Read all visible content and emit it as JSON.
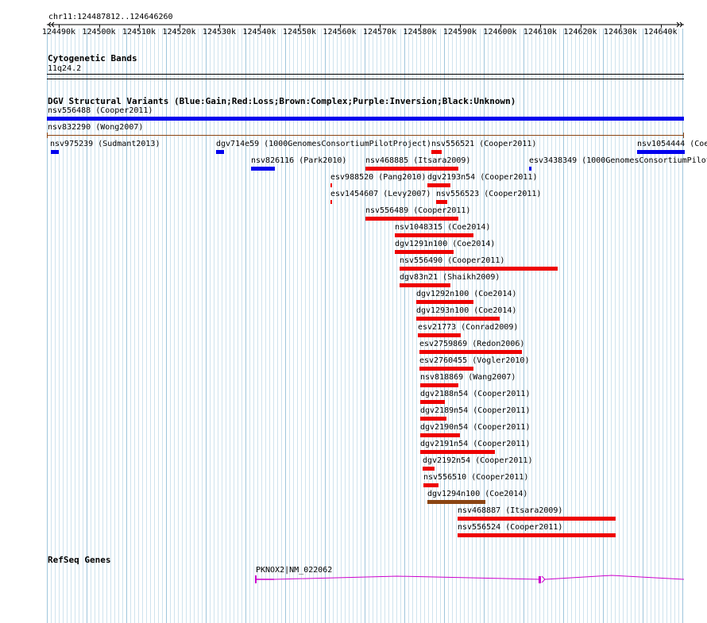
{
  "ruler": {
    "locus": "chr11:124487812..124646260",
    "tick_labels": [
      "124490k",
      "124500k",
      "124510k",
      "124520k",
      "124530k",
      "124540k",
      "124550k",
      "124560k",
      "124570k",
      "124580k",
      "124590k",
      "124600k",
      "124610k",
      "124620k",
      "124630k",
      "124640k"
    ]
  },
  "cytoband_track": {
    "title": "Cytogenetic Bands",
    "band": "11q24.2"
  },
  "dgv_track": {
    "title": "DGV Structural Variants (Blue:Gain;Red:Loss;Brown:Complex;Purple:Inversion;Black:Unknown)",
    "colors": {
      "gain": "#0000ee",
      "loss": "#ee0000",
      "complex": "#8b4513",
      "unknown": "#000000"
    },
    "features": [
      {
        "label": "nsv556488 (Cooper2011)",
        "type": "gain"
      },
      {
        "label": "nsv832290 (Wong2007)",
        "type": "line"
      },
      {
        "label": "nsv975239 (Sudmant2013)",
        "type": "gain"
      },
      {
        "label": "dgv714e59 (1000GenomesConsortiumPilotProject)",
        "type": "gain"
      },
      {
        "label": "nsv556521 (Cooper2011)",
        "type": "loss"
      },
      {
        "label": "nsv1054444 (Coe",
        "type": "gain"
      },
      {
        "label": "nsv826116 (Park2010)",
        "type": "gain"
      },
      {
        "label": "nsv468885 (Itsara2009)",
        "type": "loss"
      },
      {
        "label": "esv3438349 (1000GenomesConsortiumPilot",
        "type": "gain"
      },
      {
        "label": "esv988520 (Pang2010)",
        "type": "loss"
      },
      {
        "label": "dgv2193n54 (Cooper2011)",
        "type": "loss"
      },
      {
        "label": "esv1454607 (Levy2007)",
        "type": "loss"
      },
      {
        "label": "nsv556523 (Cooper2011)",
        "type": "loss"
      },
      {
        "label": "nsv556489 (Cooper2011)",
        "type": "loss"
      },
      {
        "label": "nsv1048315 (Coe2014)",
        "type": "loss"
      },
      {
        "label": "dgv1291n100 (Coe2014)",
        "type": "loss"
      },
      {
        "label": "nsv556490 (Cooper2011)",
        "type": "loss"
      },
      {
        "label": "dgv83n21 (Shaikh2009)",
        "type": "loss"
      },
      {
        "label": "dgv1292n100 (Coe2014)",
        "type": "loss"
      },
      {
        "label": "dgv1293n100 (Coe2014)",
        "type": "loss"
      },
      {
        "label": "esv21773 (Conrad2009)",
        "type": "loss"
      },
      {
        "label": "esv2759869 (Redon2006)",
        "type": "loss"
      },
      {
        "label": "esv2760455 (Vogler2010)",
        "type": "loss"
      },
      {
        "label": "nsv818869 (Wang2007)",
        "type": "loss"
      },
      {
        "label": "dgv2188n54 (Cooper2011)",
        "type": "loss"
      },
      {
        "label": "dgv2189n54 (Cooper2011)",
        "type": "loss"
      },
      {
        "label": "dgv2190n54 (Cooper2011)",
        "type": "loss"
      },
      {
        "label": "dgv2191n54 (Cooper2011)",
        "type": "loss"
      },
      {
        "label": "dgv2192n54 (Cooper2011)",
        "type": "loss"
      },
      {
        "label": "nsv556510 (Cooper2011)",
        "type": "loss"
      },
      {
        "label": "dgv1294n100 (Coe2014)",
        "type": "complex"
      },
      {
        "label": "nsv468887 (Itsara2009)",
        "type": "loss"
      },
      {
        "label": "nsv556524 (Cooper2011)",
        "type": "loss"
      }
    ]
  },
  "refseq_track": {
    "title": "RefSeq Genes",
    "gene_label": "PKNOX2|NM_022062",
    "color": "#cc00cc"
  }
}
